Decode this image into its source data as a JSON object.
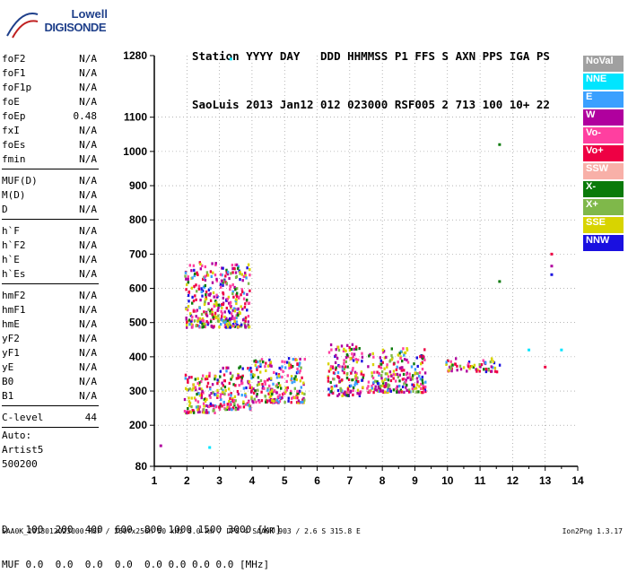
{
  "logo": {
    "line1": "Lowell",
    "line2": "DIGISONDE"
  },
  "header": {
    "labels": [
      "Station",
      "YYYY",
      "DAY",
      "DDD",
      "HHMMSS",
      "P1",
      "FFS",
      "S",
      "AXN",
      "PPS",
      "IGA",
      "PS"
    ],
    "values": [
      "SaoLuis",
      "2013",
      "Jan12",
      "012",
      "023000",
      "RSF",
      "005",
      "2",
      "713",
      "100",
      "10+",
      "22"
    ]
  },
  "params": [
    {
      "name": "foF2",
      "value": "N/A"
    },
    {
      "name": "foF1",
      "value": "N/A"
    },
    {
      "name": "foF1p",
      "value": "N/A"
    },
    {
      "name": "foE",
      "value": "N/A"
    },
    {
      "name": "foEp",
      "value": "0.48"
    },
    {
      "name": "fxI",
      "value": "N/A"
    },
    {
      "name": "foEs",
      "value": "N/A"
    },
    {
      "name": "fmin",
      "value": "N/A"
    },
    {
      "name": "MUF(D)",
      "value": "N/A"
    },
    {
      "name": "M(D)",
      "value": "N/A"
    },
    {
      "name": "D",
      "value": "N/A"
    },
    {
      "name": "h`F",
      "value": "N/A"
    },
    {
      "name": "h`F2",
      "value": "N/A"
    },
    {
      "name": "h`E",
      "value": "N/A"
    },
    {
      "name": "h`Es",
      "value": "N/A"
    },
    {
      "name": "hmF2",
      "value": "N/A"
    },
    {
      "name": "hmF1",
      "value": "N/A"
    },
    {
      "name": "hmE",
      "value": "N/A"
    },
    {
      "name": "yF2",
      "value": "N/A"
    },
    {
      "name": "yF1",
      "value": "N/A"
    },
    {
      "name": "yE",
      "value": "N/A"
    },
    {
      "name": "B0",
      "value": "N/A"
    },
    {
      "name": "B1",
      "value": "N/A"
    },
    {
      "name": "C-level",
      "value": "44"
    }
  ],
  "auto": [
    "Auto:",
    "Artist5",
    "500200"
  ],
  "legend": [
    {
      "label": "NoVal",
      "color": "#a0a0a0"
    },
    {
      "label": "NNE",
      "color": "#00e5ff"
    },
    {
      "label": "E",
      "color": "#3aa0ff"
    },
    {
      "label": "W",
      "color": "#b0009e"
    },
    {
      "label": "Vo-",
      "color": "#ff3fa0"
    },
    {
      "label": "Vo+",
      "color": "#ee0044"
    },
    {
      "label": "SSW",
      "color": "#f8b0a8"
    },
    {
      "label": "X-",
      "color": "#0a7a0a"
    },
    {
      "label": "X+",
      "color": "#7fb84a"
    },
    {
      "label": "SSE",
      "color": "#d8d400"
    },
    {
      "label": "NNW",
      "color": "#1a10e0"
    }
  ],
  "bottom": {
    "d_label": "D",
    "d_values": [
      "100",
      "200",
      "400",
      "600",
      "800",
      "1000",
      "1500",
      "3000"
    ],
    "d_unit": "[km]",
    "muf_label": "MUF",
    "muf_values": [
      "0.0",
      "0.0",
      "0.0",
      "0.0",
      "0.0",
      "0.0",
      "0.0",
      "0.0"
    ],
    "muf_unit": "[MHz]"
  },
  "footer": {
    "left": "SAA0K_2013012023000.RSF / 260fx256h 50 kHz 5.0 km / DPS-4 SAA0K 903 / 2.6 S 315.8 E",
    "right": "Ion2Png 1.3.17"
  },
  "chart_data": {
    "type": "scatter",
    "x_ticks": [
      1,
      2,
      3,
      4,
      5,
      6,
      7,
      8,
      9,
      10,
      11,
      12,
      13,
      14
    ],
    "y_ticks": [
      80,
      200,
      300,
      400,
      500,
      600,
      700,
      800,
      900,
      1000,
      1100,
      1280
    ],
    "xlim": [
      1,
      14
    ],
    "ylim": [
      80,
      1280
    ],
    "grid": true,
    "legend_position": "right",
    "traces": [
      {
        "series": "mixed",
        "freq": [
          1.9,
          2.9
        ],
        "height": [
          240,
          360
        ]
      },
      {
        "series": "mixed",
        "freq": [
          2.9,
          4.0
        ],
        "height": [
          250,
          380
        ]
      },
      {
        "series": "mixed",
        "freq": [
          4.0,
          5.6
        ],
        "height": [
          270,
          400
        ]
      },
      {
        "series": "mixed",
        "freq": [
          6.3,
          7.4
        ],
        "height": [
          290,
          440
        ]
      },
      {
        "series": "mixed",
        "freq": [
          7.5,
          9.3
        ],
        "height": [
          300,
          430
        ]
      },
      {
        "series": "mixed",
        "freq": [
          9.9,
          11.6
        ],
        "height": [
          360,
          400
        ]
      },
      {
        "series": "mixed",
        "freq": [
          1.9,
          3.9
        ],
        "height": [
          490,
          680
        ]
      }
    ],
    "isolated_points": [
      {
        "freq": 1.2,
        "height": 140,
        "series": "W"
      },
      {
        "freq": 2.7,
        "height": 135,
        "series": "NNE"
      },
      {
        "freq": 3.35,
        "height": 1270,
        "series": "NNE"
      },
      {
        "freq": 11.6,
        "height": 1020,
        "series": "X-"
      },
      {
        "freq": 11.6,
        "height": 620,
        "series": "X-"
      },
      {
        "freq": 13.2,
        "height": 700,
        "series": "Vo+"
      },
      {
        "freq": 13.2,
        "height": 665,
        "series": "W"
      },
      {
        "freq": 13.2,
        "height": 640,
        "series": "NNW"
      },
      {
        "freq": 12.5,
        "height": 420,
        "series": "NNE"
      },
      {
        "freq": 13.5,
        "height": 420,
        "series": "NNE"
      },
      {
        "freq": 13.0,
        "height": 370,
        "series": "Vo+"
      }
    ]
  }
}
